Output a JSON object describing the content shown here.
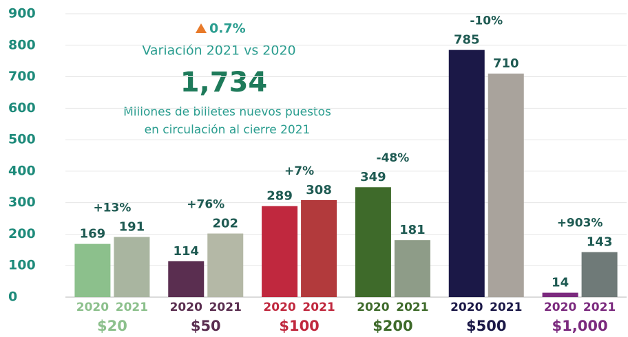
{
  "chart_data": {
    "type": "bar",
    "categories": [
      "$20",
      "$50",
      "$100",
      "$200",
      "$500",
      "$1,000"
    ],
    "category_colors": [
      "#8cc08c",
      "#5a2e50",
      "#c0283e",
      "#3e6a2a",
      "#1b1847",
      "#7b2a7e"
    ],
    "series": [
      {
        "name": "2020",
        "colors": [
          "#8cc08c",
          "#5a2e50",
          "#c0283e",
          "#3e6a2a",
          "#1b1847",
          "#7b2a7e"
        ],
        "values": [
          169,
          114,
          289,
          349,
          785,
          14
        ]
      },
      {
        "name": "2021",
        "colors": [
          "#a9b5a0",
          "#b4b8a6",
          "#b23a3c",
          "#8e9c88",
          "#a9a39c",
          "#6f7a78"
        ],
        "values": [
          191,
          202,
          308,
          181,
          710,
          143
        ]
      }
    ],
    "change_labels": [
      "+13%",
      "+76%",
      "+7%",
      "-48%",
      "-10%",
      "+903%"
    ],
    "ylim": [
      0,
      900
    ],
    "yticks": [
      0,
      100,
      200,
      300,
      400,
      500,
      600,
      700,
      800,
      900
    ],
    "grid": true,
    "annotations": {
      "change": "0.7%",
      "variation": "Variación 2021 vs 2020",
      "total": "1,734",
      "line1": "Millones de billetes nuevos puestos",
      "line2": "en circulación al cierre 2021"
    }
  }
}
